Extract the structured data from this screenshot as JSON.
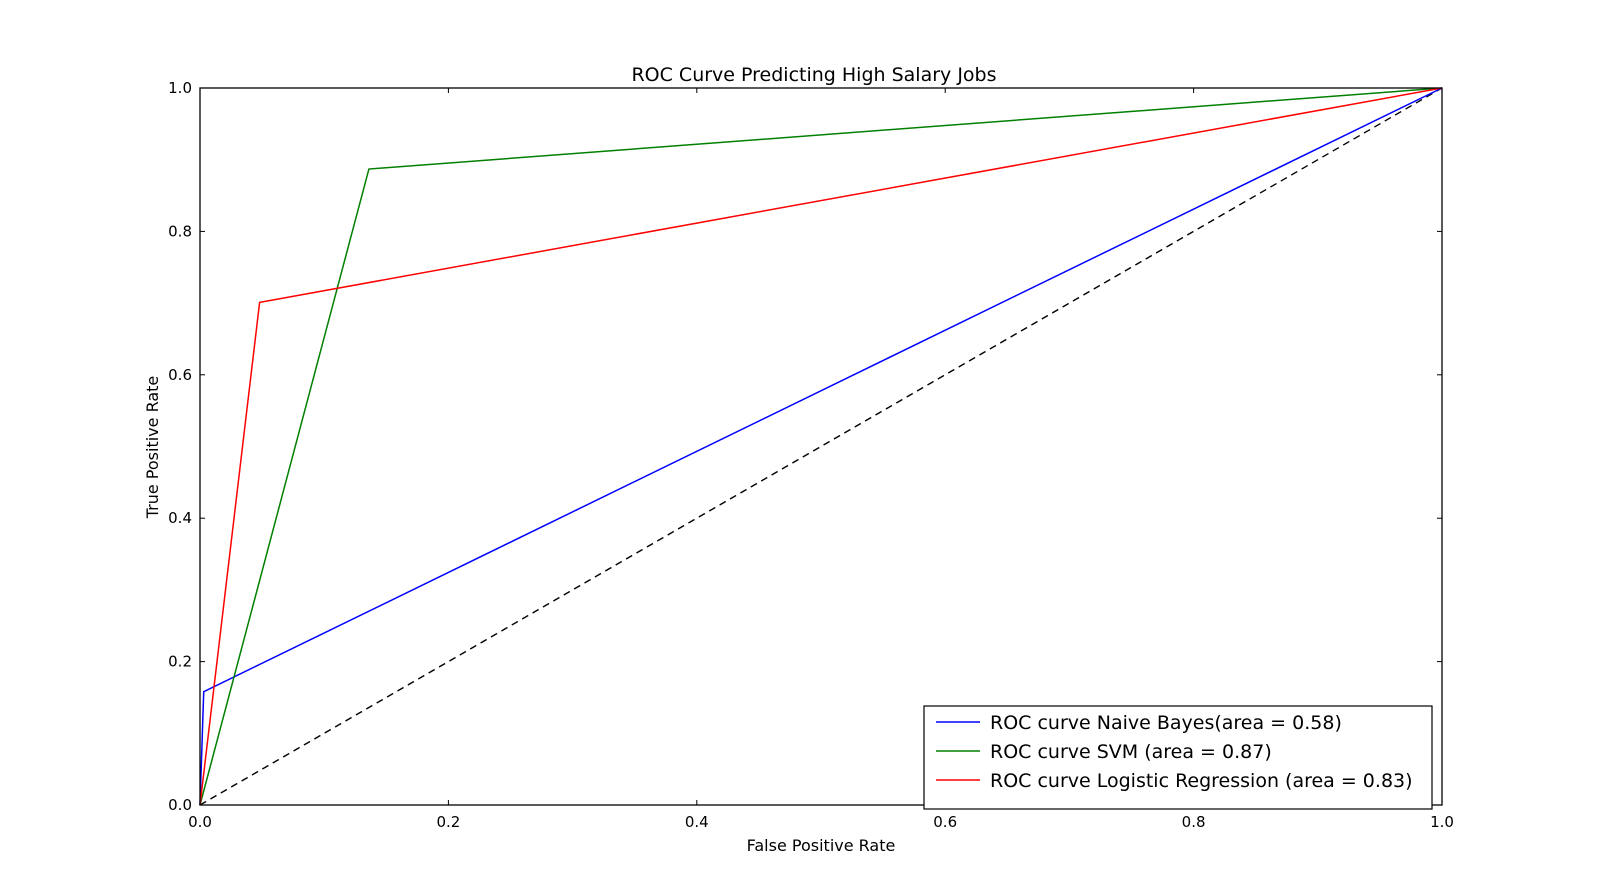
{
  "chart_data": {
    "type": "line",
    "title": "ROC Curve Predicting High Salary Jobs",
    "xlabel": "False Positive Rate",
    "ylabel": "True Positive Rate",
    "xlim": [
      0.0,
      1.0
    ],
    "ylim": [
      0.0,
      1.0
    ],
    "xticks": [
      "0.0",
      "0.2",
      "0.4",
      "0.6",
      "0.8",
      "1.0"
    ],
    "yticks": [
      "0.0",
      "0.2",
      "0.4",
      "0.6",
      "0.8",
      "1.0"
    ],
    "grid": false,
    "legend_position": "lower-right",
    "series": [
      {
        "name": "ROC curve Naive Bayes(area = 0.58)",
        "color": "#0000ff",
        "x": [
          0.0,
          0.003,
          1.0
        ],
        "y": [
          0.0,
          0.158,
          1.0
        ]
      },
      {
        "name": "ROC curve SVM (area = 0.87)",
        "color": "#008000",
        "x": [
          0.0,
          0.136,
          1.0
        ],
        "y": [
          0.0,
          0.887,
          1.0
        ]
      },
      {
        "name": "ROC curve Logistic Regression (area = 0.83)",
        "color": "#ff0000",
        "x": [
          0.0,
          0.048,
          1.0
        ],
        "y": [
          0.0,
          0.701,
          1.0
        ]
      }
    ],
    "reference_line": {
      "style": "dashed",
      "color": "#000000",
      "x": [
        0.0,
        1.0
      ],
      "y": [
        0.0,
        1.0
      ]
    }
  }
}
